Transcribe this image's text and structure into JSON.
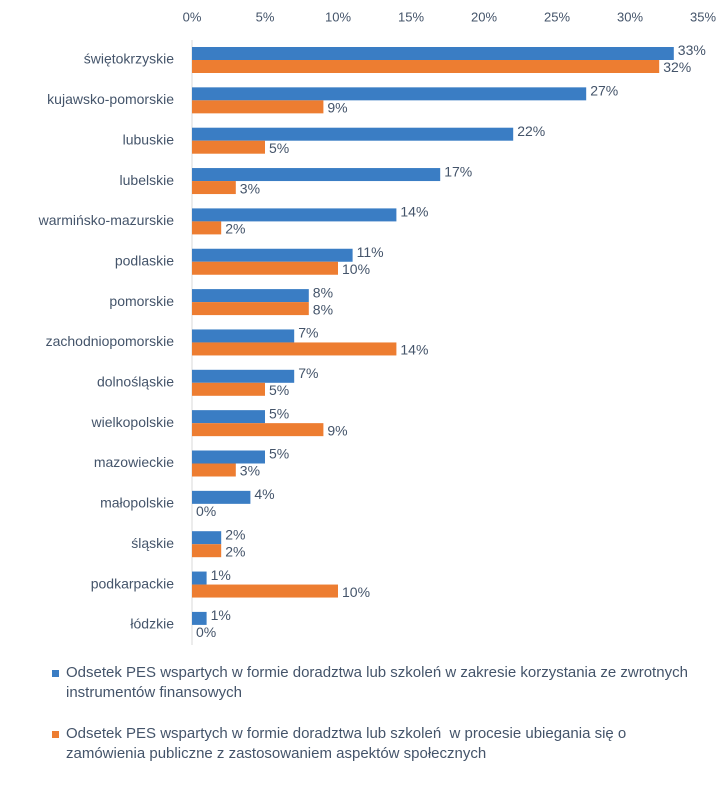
{
  "chart_data": {
    "type": "bar",
    "orientation": "horizontal",
    "categories": [
      "świętokrzyskie",
      "kujawsko-pomorskie",
      "lubuskie",
      "lubelskie",
      "warmińsko-mazurskie",
      "podlaskie",
      "pomorskie",
      "zachodniopomorskie",
      "dolnośląskie",
      "wielkopolskie",
      "mazowieckie",
      "małopolskie",
      "śląskie",
      "podkarpackie",
      "łódzkie"
    ],
    "series": [
      {
        "name": "Odsetek PES wspartych w formie doradztwa lub szkoleń w zakresie korzystania ze zwrotnych instrumentów finansowych",
        "color": "#3a7dc4",
        "values": [
          33,
          27,
          22,
          17,
          14,
          11,
          8,
          7,
          7,
          5,
          5,
          4,
          2,
          1,
          1
        ],
        "value_labels": [
          "33%",
          "27%",
          "22%",
          "17%",
          "14%",
          "11%",
          "8%",
          "7%",
          "7%",
          "5%",
          "5%",
          "4%",
          "2%",
          "1%",
          "1%"
        ]
      },
      {
        "name": "Odsetek PES wspartych w formie doradztwa lub szkoleń  w procesie ubiegania się o zamówienia publiczne z zastosowaniem aspektów społecznych",
        "color": "#ed7d31",
        "values": [
          32,
          9,
          5,
          3,
          2,
          10,
          8,
          14,
          5,
          9,
          3,
          0,
          2,
          10,
          0
        ],
        "value_labels": [
          "32%",
          "9%",
          "5%",
          "3%",
          "2%",
          "10%",
          "8%",
          "14%",
          "5%",
          "9%",
          "3%",
          "0%",
          "2%",
          "10%",
          "0%"
        ]
      }
    ],
    "xlim": [
      0,
      35
    ],
    "xticks": [
      {
        "value": 0,
        "label": "0%"
      },
      {
        "value": 5,
        "label": "5%"
      },
      {
        "value": 10,
        "label": "10%"
      },
      {
        "value": 15,
        "label": "15%"
      },
      {
        "value": 20,
        "label": "20%"
      },
      {
        "value": 25,
        "label": "25%"
      },
      {
        "value": 30,
        "label": "30%"
      },
      {
        "value": 35,
        "label": "35%"
      }
    ],
    "grid": false,
    "legend": "bottom"
  }
}
